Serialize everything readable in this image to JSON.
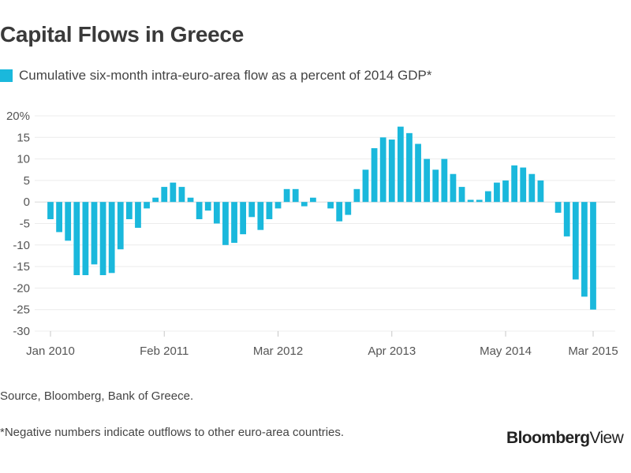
{
  "chart_data": {
    "type": "bar",
    "title": "Capital Flows in Greece",
    "legend": [
      {
        "name": "Cumulative six-month intra-euro-area flow as a percent of 2014 GDP*",
        "color": "#1ab8dc"
      }
    ],
    "xlabel": "",
    "ylabel": "",
    "ylim": [
      -30,
      20
    ],
    "yticks": [
      20,
      15,
      10,
      5,
      0,
      -5,
      -10,
      -15,
      -20,
      -25,
      -30
    ],
    "ytick_labels": [
      "20%",
      "15",
      "10",
      "5",
      "0",
      "-5",
      "-10",
      "-15",
      "-20",
      "-25",
      "-30"
    ],
    "xtick_labels": [
      {
        "label": "Jan 2010",
        "month": "2010-01"
      },
      {
        "label": "Feb 2011",
        "month": "2011-02"
      },
      {
        "label": "Mar 2012",
        "month": "2012-03"
      },
      {
        "label": "Apr 2013",
        "month": "2013-04"
      },
      {
        "label": "May 2014",
        "month": "2014-05"
      },
      {
        "label": "Mar 2015",
        "month": "2015-03"
      }
    ],
    "grid": true,
    "bar_color": "#1ab8dc",
    "series": [
      {
        "months": [
          "2010-01",
          "2010-02",
          "2010-03",
          "2010-04",
          "2010-05",
          "2010-06",
          "2010-07",
          "2010-08",
          "2010-09",
          "2010-10",
          "2010-11",
          "2010-12",
          "2011-01",
          "2011-02",
          "2011-03",
          "2011-04",
          "2011-05",
          "2011-06",
          "2011-07",
          "2011-08",
          "2011-09",
          "2011-10",
          "2011-11",
          "2011-12",
          "2012-01",
          "2012-02",
          "2012-03",
          "2012-04",
          "2012-05",
          "2012-06",
          "2012-07",
          "2012-08",
          "2012-09",
          "2012-10",
          "2012-11",
          "2012-12",
          "2013-01",
          "2013-02",
          "2013-03",
          "2013-04",
          "2013-05",
          "2013-06",
          "2013-07",
          "2013-08",
          "2013-09",
          "2013-10",
          "2013-11",
          "2013-12",
          "2014-01",
          "2014-02",
          "2014-03",
          "2014-04",
          "2014-05",
          "2014-06",
          "2014-07",
          "2014-08",
          "2014-09",
          "2014-10",
          "2014-11",
          "2014-12",
          "2015-01",
          "2015-02",
          "2015-03"
        ],
        "values": [
          -4,
          -7,
          -9,
          -17,
          -17,
          -14.5,
          -17,
          -16.5,
          -11,
          -4,
          -6,
          -1.5,
          1,
          3.5,
          4.5,
          3.5,
          1,
          -4,
          -2,
          -5,
          -10,
          -9.5,
          -7.5,
          -3.5,
          -6.5,
          -4,
          -1.5,
          3,
          3,
          -1,
          1,
          0,
          -1.5,
          -4.5,
          -3,
          3,
          7.5,
          12.5,
          15,
          14.5,
          17.5,
          16,
          13.5,
          10,
          7.5,
          10,
          6.5,
          3.5,
          0.5,
          0.5,
          2.5,
          4.5,
          5,
          8.5,
          8,
          6.5,
          5,
          0,
          -2.5,
          -8,
          -18,
          -22,
          -25
        ]
      }
    ]
  },
  "source": "Source, Bloomberg, Bank of Greece.",
  "footnote": "*Negative numbers indicate outflows to other euro-area countries.",
  "brand": {
    "main": "Bloomberg",
    "accent": "View"
  }
}
